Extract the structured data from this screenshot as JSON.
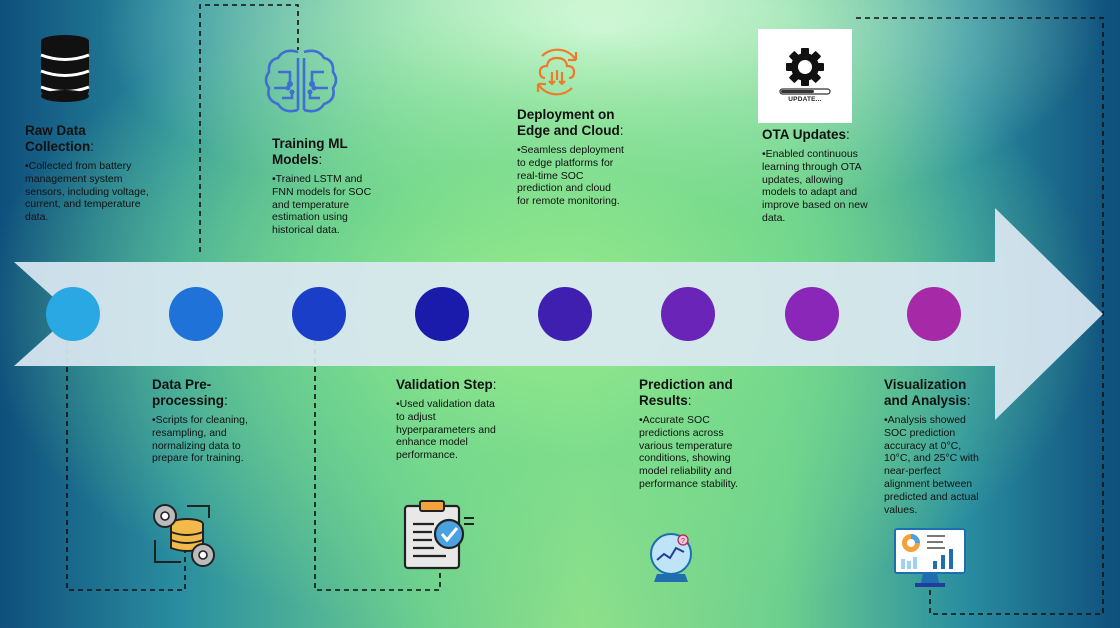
{
  "colors": {
    "arrow_fill": "#dbe8f2",
    "dashed_line": "#111111",
    "dots": [
      "#29a8e3",
      "#1f73d8",
      "#1a3ec8",
      "#1a1aab",
      "#3f1fb0",
      "#6a24b8",
      "#8a26b8",
      "#a62aa8"
    ]
  },
  "steps": [
    {
      "title": "Raw Data Collection",
      "body": "•Collected from battery management system sensors, including voltage, current, and temperature data.",
      "icon": "database-icon"
    },
    {
      "title": "Data Pre-processing",
      "body": "•Scripts for cleaning, resampling, and normalizing data to prepare for training.",
      "icon": "gears-database-icon"
    },
    {
      "title": "Training ML Models",
      "body": "•Trained LSTM and FNN models for SOC and temperature estimation using historical data.",
      "icon": "ai-brain-circuit-icon"
    },
    {
      "title": "Validation Step",
      "body": "•Used validation data to adjust hyperparameters and enhance model performance.",
      "icon": "clipboard-check-icon"
    },
    {
      "title": "Deployment on Edge and Cloud",
      "body": "•Seamless deployment to edge platforms for real-time SOC prediction and cloud for remote monitoring.",
      "icon": "cloud-sync-icon"
    },
    {
      "title": "Prediction and Results",
      "body": "•Accurate SOC predictions across various temperature conditions, showing model reliability and performance stability.",
      "icon": "crystal-ball-chart-icon"
    },
    {
      "title": "OTA Updates",
      "body": "•Enabled continuous learning through OTA updates, allowing models to adapt and improve based on new data.",
      "icon": "gear-update-icon",
      "icon_caption": "UPDATE..."
    },
    {
      "title": "Visualization and Analysis",
      "body": "•Analysis showed SOC prediction accuracy at 0°C, 10°C, and 25°C with near-perfect alignment between predicted and actual values.",
      "icon": "dashboard-monitor-icon"
    }
  ]
}
